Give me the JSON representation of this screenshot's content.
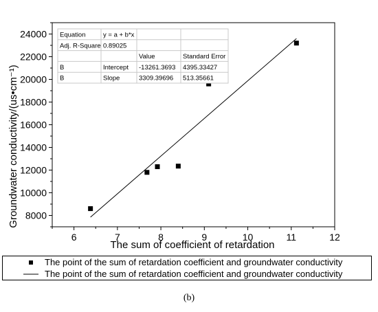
{
  "chart_data": {
    "type": "scatter",
    "title": "",
    "xlabel": "The sum of coefficient of retardation",
    "ylabel": "Groundwater conductivity/(us•cm⁻¹)",
    "xlim": [
      5.5,
      12
    ],
    "ylim": [
      7000,
      25000
    ],
    "x_ticks": [
      6,
      7,
      8,
      9,
      10,
      11,
      12
    ],
    "y_ticks": [
      8000,
      10000,
      12000,
      14000,
      16000,
      18000,
      20000,
      22000,
      24000
    ],
    "grid": false,
    "series": [
      {
        "name": "The point of the sum of retardation coefficient and groundwater conductivity",
        "kind": "points",
        "x": [
          6.38,
          7.68,
          7.92,
          8.4,
          9.1,
          11.12
        ],
        "y": [
          8600,
          11800,
          12300,
          12350,
          19600,
          23200
        ]
      },
      {
        "name": "The point of the sum of retardation coefficient and groundwater conductivity",
        "kind": "fit-line",
        "x": [
          6.38,
          11.12
        ],
        "y": [
          7850,
          23600
        ]
      }
    ],
    "legend_position": "bottom",
    "stats_table": [
      [
        "Equation",
        "y = a + b*x",
        "",
        ""
      ],
      [
        "Adj. R-Square",
        "0.89025",
        "",
        ""
      ],
      [
        "",
        "",
        "Value",
        "Standard Error"
      ],
      [
        "B",
        "Intercept",
        "-13261.3693",
        "4395.33427"
      ],
      [
        "B",
        "Slope",
        "3309.39696",
        "513.35661"
      ]
    ]
  },
  "caption": "(b)"
}
